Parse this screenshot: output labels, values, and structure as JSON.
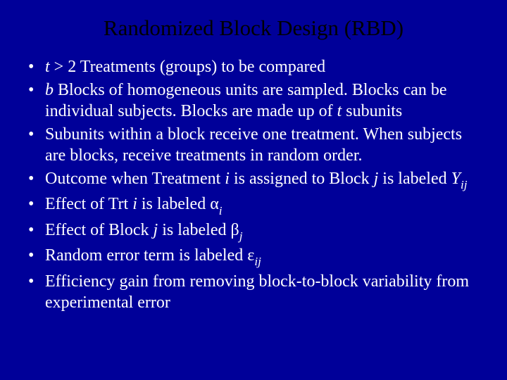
{
  "slide": {
    "background_color": "#000099",
    "title_color": "#000000",
    "body_color": "#ffffff",
    "title_fontsize": 31,
    "body_fontsize": 24,
    "font_family": "Times New Roman",
    "title": "Randomized Block Design (RBD)",
    "bullets": [
      {
        "parts": [
          {
            "text": "t",
            "style": "ital"
          },
          {
            "text": " > 2 Treatments (groups) to be compared"
          }
        ]
      },
      {
        "parts": [
          {
            "text": "b",
            "style": "ital"
          },
          {
            "text": " Blocks of homogeneous units are sampled. Blocks can be individual subjects. Blocks are made up of "
          },
          {
            "text": "t",
            "style": "ital"
          },
          {
            "text": " subunits"
          }
        ]
      },
      {
        "parts": [
          {
            "text": "Subunits within a block receive one treatment. When subjects are blocks, receive treatments in random order."
          }
        ]
      },
      {
        "parts": [
          {
            "text": "Outcome when Treatment "
          },
          {
            "text": "i",
            "style": "ital"
          },
          {
            "text": " is assigned to Block "
          },
          {
            "text": "j",
            "style": "ital"
          },
          {
            "text": " is labeled "
          },
          {
            "text": "Y",
            "style": "ital"
          },
          {
            "text": "ij",
            "style": "sub"
          }
        ]
      },
      {
        "parts": [
          {
            "text": "Effect of Trt "
          },
          {
            "text": "i",
            "style": "ital"
          },
          {
            "text": " is labeled "
          },
          {
            "text": "α",
            "style": "greek"
          },
          {
            "text": "i",
            "style": "sub"
          }
        ]
      },
      {
        "parts": [
          {
            "text": "Effect of Block "
          },
          {
            "text": "j",
            "style": "ital"
          },
          {
            "text": " is labeled "
          },
          {
            "text": "β",
            "style": "greek"
          },
          {
            "text": "j",
            "style": "sub"
          }
        ]
      },
      {
        "parts": [
          {
            "text": "Random error term is labeled "
          },
          {
            "text": "ε",
            "style": "greek"
          },
          {
            "text": "ij",
            "style": "sub"
          }
        ]
      },
      {
        "parts": [
          {
            "text": "Efficiency gain from removing block-to-block variability from experimental error"
          }
        ]
      }
    ]
  }
}
